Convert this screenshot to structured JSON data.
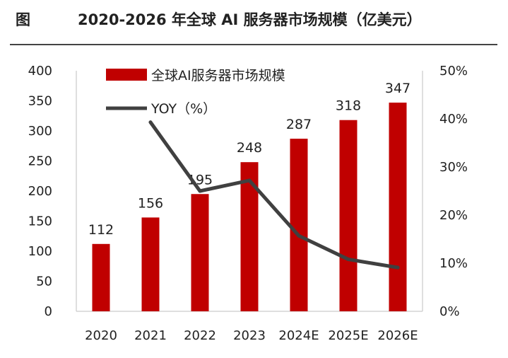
{
  "figure_label": "图",
  "chart_data": {
    "type": "bar",
    "title": "2020-2026 年全球 AI 服务器市场规模（亿美元）",
    "categories": [
      "2020",
      "2021",
      "2022",
      "2023",
      "2024E",
      "2025E",
      "2026E"
    ],
    "series": [
      {
        "name": "全球AI服务器市场规模",
        "type": "bar",
        "axis": "left",
        "color": "#c00000",
        "values": [
          112,
          156,
          195,
          248,
          287,
          318,
          347
        ]
      },
      {
        "name": "YOY（%）",
        "type": "line",
        "axis": "right",
        "color": "#404040",
        "values": [
          null,
          39.3,
          25.0,
          27.2,
          15.7,
          10.8,
          9.1
        ]
      }
    ],
    "y_left": {
      "lim": [
        0,
        400
      ],
      "ticks": [
        0,
        50,
        100,
        150,
        200,
        250,
        300,
        350,
        400
      ]
    },
    "y_right": {
      "lim": [
        0,
        50
      ],
      "ticks": [
        0,
        10,
        20,
        30,
        40,
        50
      ],
      "tick_labels": [
        "0%",
        "10%",
        "20%",
        "30%",
        "40%",
        "50%"
      ]
    },
    "legend": "top-left",
    "grid": false
  }
}
